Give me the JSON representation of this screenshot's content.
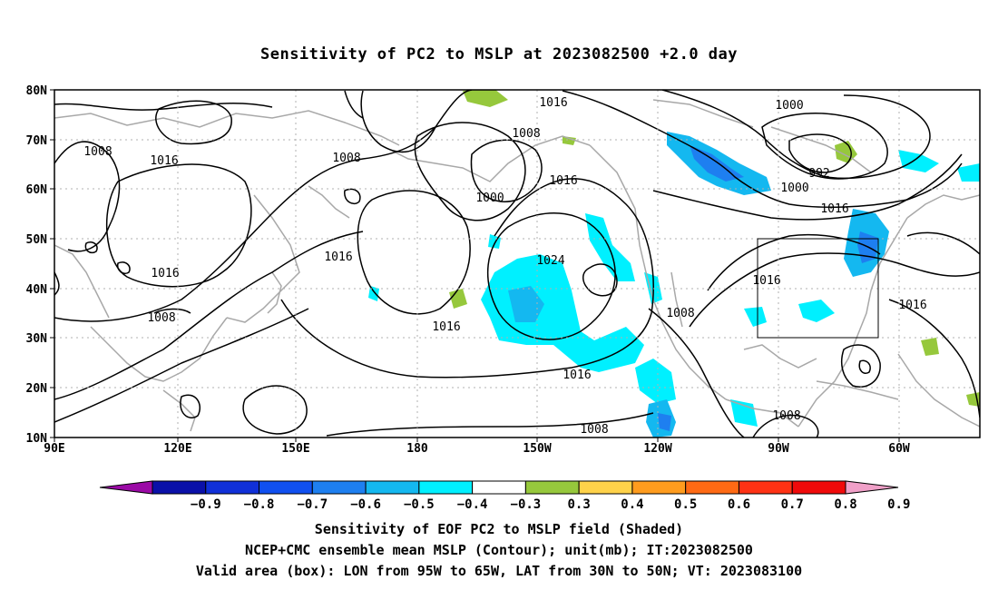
{
  "title": "Sensitivity of PC2 to MSLP at 2023082500 +2.0 day",
  "map": {
    "lat_labels": [
      "80N",
      "70N",
      "60N",
      "50N",
      "40N",
      "30N",
      "20N",
      "10N"
    ],
    "lon_labels": [
      "90E",
      "120E",
      "150E",
      "180",
      "150W",
      "120W",
      "90W",
      "60W"
    ],
    "contour_labels": [
      {
        "text": "1016"
      },
      {
        "text": "1000"
      },
      {
        "text": "1008"
      },
      {
        "text": "1008"
      },
      {
        "text": "1016"
      },
      {
        "text": "992"
      },
      {
        "text": "1000"
      },
      {
        "text": "1016"
      },
      {
        "text": "1008"
      },
      {
        "text": "1000"
      },
      {
        "text": "1016"
      },
      {
        "text": "1016"
      },
      {
        "text": "1024"
      },
      {
        "text": "1016"
      },
      {
        "text": "1016"
      },
      {
        "text": "1008"
      },
      {
        "text": "1016"
      },
      {
        "text": "1016"
      },
      {
        "text": "1016"
      },
      {
        "text": "1008"
      },
      {
        "text": "1008"
      },
      {
        "text": "1016"
      },
      {
        "text": "1008"
      }
    ],
    "valid_box": {
      "lon": [
        "95W",
        "65W"
      ],
      "lat": [
        "30N",
        "50N"
      ]
    }
  },
  "colorbar": {
    "labels": [
      "−0.9",
      "−0.8",
      "−0.7",
      "−0.6",
      "−0.5",
      "−0.4",
      "−0.3",
      "0.3",
      "0.4",
      "0.5",
      "0.6",
      "0.7",
      "0.8",
      "0.9"
    ],
    "colors": [
      "#9b0aa6",
      "#0a10a8",
      "#1030d8",
      "#1050f0",
      "#1e7ff0",
      "#14b8f0",
      "#00f0ff",
      "#ffffff",
      "#96c83c",
      "#ffd24a",
      "#ff9c1e",
      "#ff6a14",
      "#ff3214",
      "#f00a0a",
      "#f0a0c8"
    ]
  },
  "captions": {
    "line1": "Sensitivity of EOF PC2 to MSLP field (Shaded)",
    "line2": "NCEP+CMC ensemble mean MSLP (Contour); unit(mb); IT:2023082500",
    "line3": "Valid area (box): LON from 95W to 65W, LAT from 30N to 50N; VT: 2023083100"
  }
}
